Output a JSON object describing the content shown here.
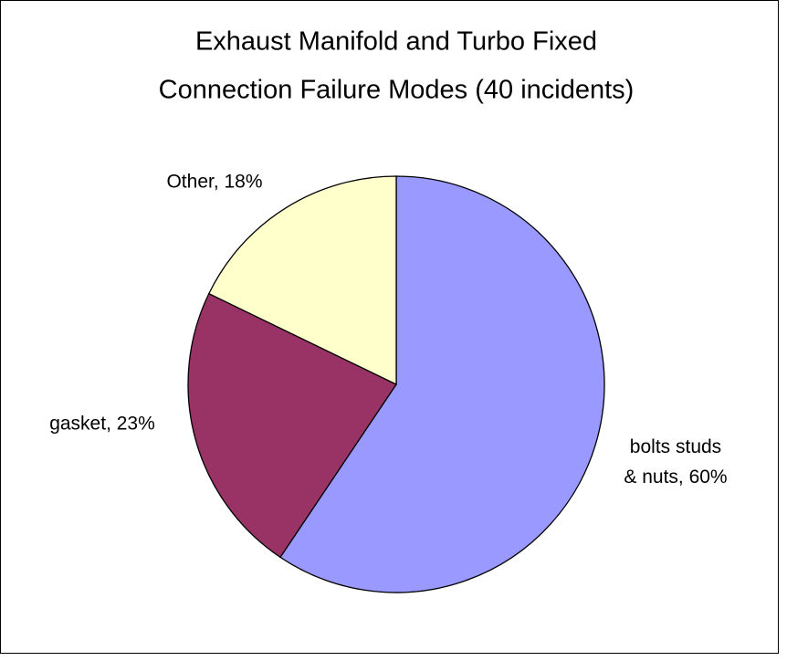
{
  "chart_data": {
    "type": "pie",
    "title": [
      "Exhaust Manifold and Turbo Fixed",
      "Connection Failure Modes (40 incidents)"
    ],
    "categories": [
      "bolts studs & nuts, 60%",
      "gasket, 23%",
      "Other, 18%"
    ],
    "values": [
      60,
      23,
      18
    ],
    "colors": [
      "#9999ff",
      "#993366",
      "#ffffcc"
    ]
  }
}
